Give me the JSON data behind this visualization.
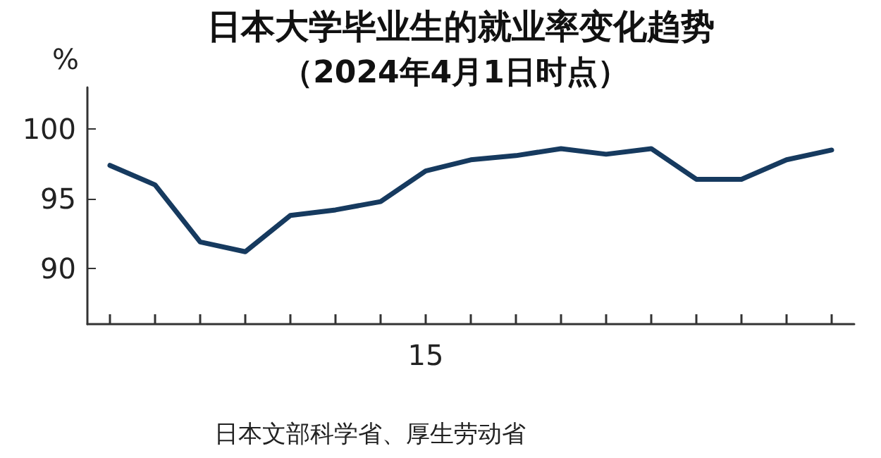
{
  "chart_data": {
    "type": "line",
    "title": "日本大学毕业生的就业率变化趋势",
    "subtitle": "（2024年4月1日时点）",
    "ylabel": "%",
    "categories": [
      null,
      null,
      null,
      null,
      null,
      null,
      null,
      "15",
      null,
      null,
      null,
      null,
      null,
      null,
      null,
      null,
      null
    ],
    "series": [
      {
        "color": "#163a5f",
        "values": [
          97.4,
          96.0,
          91.9,
          91.2,
          93.8,
          94.2,
          94.8,
          97.0,
          97.8,
          98.1,
          98.6,
          98.2,
          98.6,
          96.4,
          96.4,
          97.8,
          98.5
        ]
      }
    ],
    "ylim": [
      86,
      103
    ],
    "yticks": [
      90,
      95,
      100
    ],
    "grid": false,
    "marker": "none",
    "line_style": "solid",
    "annotations": [
      "日本文部科学省、厚生劳动省"
    ]
  }
}
